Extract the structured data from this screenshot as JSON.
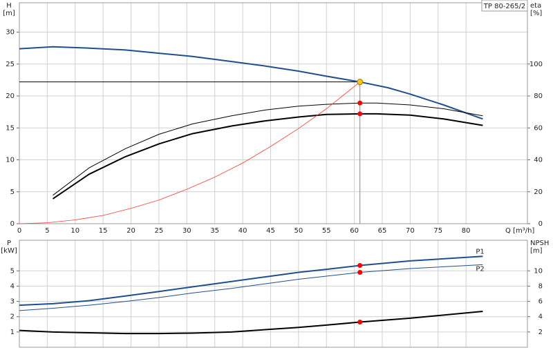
{
  "chart_data": [
    {
      "type": "line",
      "title": "TP 80-265/2",
      "x_label": "Q [m³/h]",
      "y_label": "H",
      "y_unit": "[m]",
      "y2_label": "eta",
      "y2_unit": "[%]",
      "xlim": [
        0,
        91
      ],
      "xticks": [
        0,
        5,
        10,
        15,
        20,
        25,
        30,
        35,
        40,
        45,
        50,
        55,
        60,
        65,
        70,
        75,
        80
      ],
      "ylim": [
        0,
        34.6
      ],
      "yticks": [
        0,
        5,
        10,
        15,
        20,
        25,
        30
      ],
      "y2lim": [
        0,
        138.4
      ],
      "y2ticks": [
        0,
        20,
        40,
        60,
        80,
        100
      ],
      "grid": true,
      "series": [
        {
          "color": "#1f4e8c",
          "width": 2,
          "x": [
            0,
            6,
            12.5,
            19,
            25,
            31,
            38,
            44,
            50,
            55,
            61,
            66,
            70,
            76,
            83
          ],
          "values": [
            27.4,
            27.7,
            27.5,
            27.2,
            26.7,
            26.2,
            25.4,
            24.7,
            23.9,
            23.1,
            22.2,
            21.3,
            20.3,
            18.6,
            16.4
          ]
        },
        {
          "color": "#000000",
          "width": 1,
          "axis": "y2",
          "x": [
            6,
            12.5,
            19,
            25,
            31,
            38,
            44,
            50,
            55,
            61,
            64,
            70,
            76,
            83
          ],
          "values": [
            17.8,
            35,
            47,
            56,
            62.5,
            67.6,
            71.2,
            73.6,
            74.8,
            75.6,
            75.6,
            74.4,
            72,
            67.6
          ]
        },
        {
          "color": "#000000",
          "width": 2,
          "axis": "y2",
          "x": [
            6,
            12.5,
            19,
            25,
            31,
            38,
            44,
            50,
            55,
            61,
            64,
            70,
            76,
            83
          ],
          "values": [
            15.6,
            31,
            42,
            50,
            56.4,
            61.2,
            64.4,
            66.8,
            68.4,
            68.8,
            68.8,
            68,
            65.6,
            61.6
          ]
        },
        {
          "color": "#ff3b30",
          "width": 0.8,
          "x": [
            0,
            5,
            10,
            15,
            20,
            25,
            30,
            35,
            40,
            45,
            50,
            55,
            61
          ],
          "values": [
            0,
            0.15,
            0.6,
            1.3,
            2.4,
            3.7,
            5.4,
            7.3,
            9.5,
            12.1,
            14.9,
            18,
            22.2
          ]
        }
      ],
      "operating_point": {
        "x": 61,
        "y": 22.2,
        "color": "#f5c518"
      },
      "markers": [
        {
          "x": 61,
          "y": 75.6,
          "axis": "y2",
          "color": "#ff0000"
        },
        {
          "x": 61,
          "y": 68.8,
          "axis": "y2",
          "color": "#ff0000"
        }
      ]
    },
    {
      "type": "line",
      "y_label": "P",
      "y_unit": "[kW]",
      "y2_label": "NPSH",
      "y2_unit": "[m]",
      "xlim": [
        0,
        91
      ],
      "ylim": [
        0,
        7
      ],
      "yticks": [
        1,
        2,
        3,
        4,
        5
      ],
      "y2lim": [
        0,
        14
      ],
      "y2ticks": [
        2,
        4,
        6,
        8,
        10
      ],
      "grid": true,
      "series": [
        {
          "name": "P1",
          "color": "#1f4e8c",
          "width": 2,
          "x": [
            0,
            6,
            12.5,
            19,
            25,
            31,
            38,
            44,
            50,
            55,
            61,
            70,
            83
          ],
          "values": [
            2.75,
            2.85,
            3.05,
            3.35,
            3.65,
            3.95,
            4.3,
            4.6,
            4.9,
            5.1,
            5.35,
            5.65,
            5.95
          ]
        },
        {
          "name": "P2",
          "color": "#1f4e8c",
          "width": 1,
          "x": [
            0,
            6,
            12.5,
            19,
            25,
            31,
            38,
            44,
            50,
            55,
            61,
            70,
            83
          ],
          "values": [
            2.4,
            2.55,
            2.75,
            3,
            3.25,
            3.55,
            3.85,
            4.15,
            4.45,
            4.65,
            4.9,
            5.15,
            5.4
          ]
        },
        {
          "color": "#000000",
          "width": 2,
          "axis": "y2",
          "x": [
            0,
            6,
            12.5,
            19,
            25,
            31,
            38,
            44,
            50,
            55,
            61,
            70,
            83
          ],
          "values": [
            2.2,
            2,
            1.9,
            1.8,
            1.8,
            1.85,
            2,
            2.3,
            2.6,
            2.9,
            3.3,
            3.8,
            4.7
          ]
        }
      ],
      "markers": [
        {
          "x": 61,
          "y": 5.35,
          "color": "#ff0000"
        },
        {
          "x": 61,
          "y": 4.9,
          "color": "#ff0000"
        },
        {
          "x": 61,
          "y": 3.3,
          "axis": "y2",
          "color": "#ff0000"
        }
      ]
    }
  ]
}
